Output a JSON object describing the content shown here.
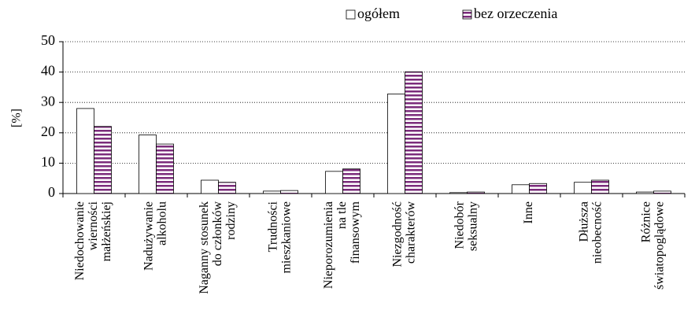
{
  "chart_data": {
    "type": "bar",
    "y_label": "[%]",
    "categories": [
      [
        "Niedochowanie",
        "wierności",
        "małżeńskiej"
      ],
      [
        "Nadużywanie",
        "alkoholu"
      ],
      [
        "Naganny stosunek",
        "do członków",
        "rodziny"
      ],
      [
        "Trudności",
        "mieszkaniowe"
      ],
      [
        "Nieporozumienia",
        "na tle",
        "finansowym"
      ],
      [
        "Niezgodność",
        "charakterów"
      ],
      [
        "Niedobór",
        "seksualny"
      ],
      [
        "Inne"
      ],
      [
        "Dłuższa",
        "nieobecność"
      ],
      [
        "Różnice",
        "światopoglądowe"
      ]
    ],
    "series": [
      {
        "name": "ogółem",
        "color": "#ffffff",
        "values": [
          28,
          19.3,
          4.4,
          0.8,
          7.3,
          32.8,
          0.3,
          2.9,
          3.7,
          0.5
        ]
      },
      {
        "name": "bez orzeczenia",
        "color": "#7b2c7b",
        "values": [
          22.1,
          16.3,
          3.7,
          1.0,
          8.1,
          40.1,
          0.5,
          3.3,
          4.4,
          0.8
        ]
      }
    ],
    "ylim": [
      0,
      50
    ],
    "yticks": [
      0,
      10,
      20,
      30,
      40,
      50
    ],
    "grid": true
  }
}
